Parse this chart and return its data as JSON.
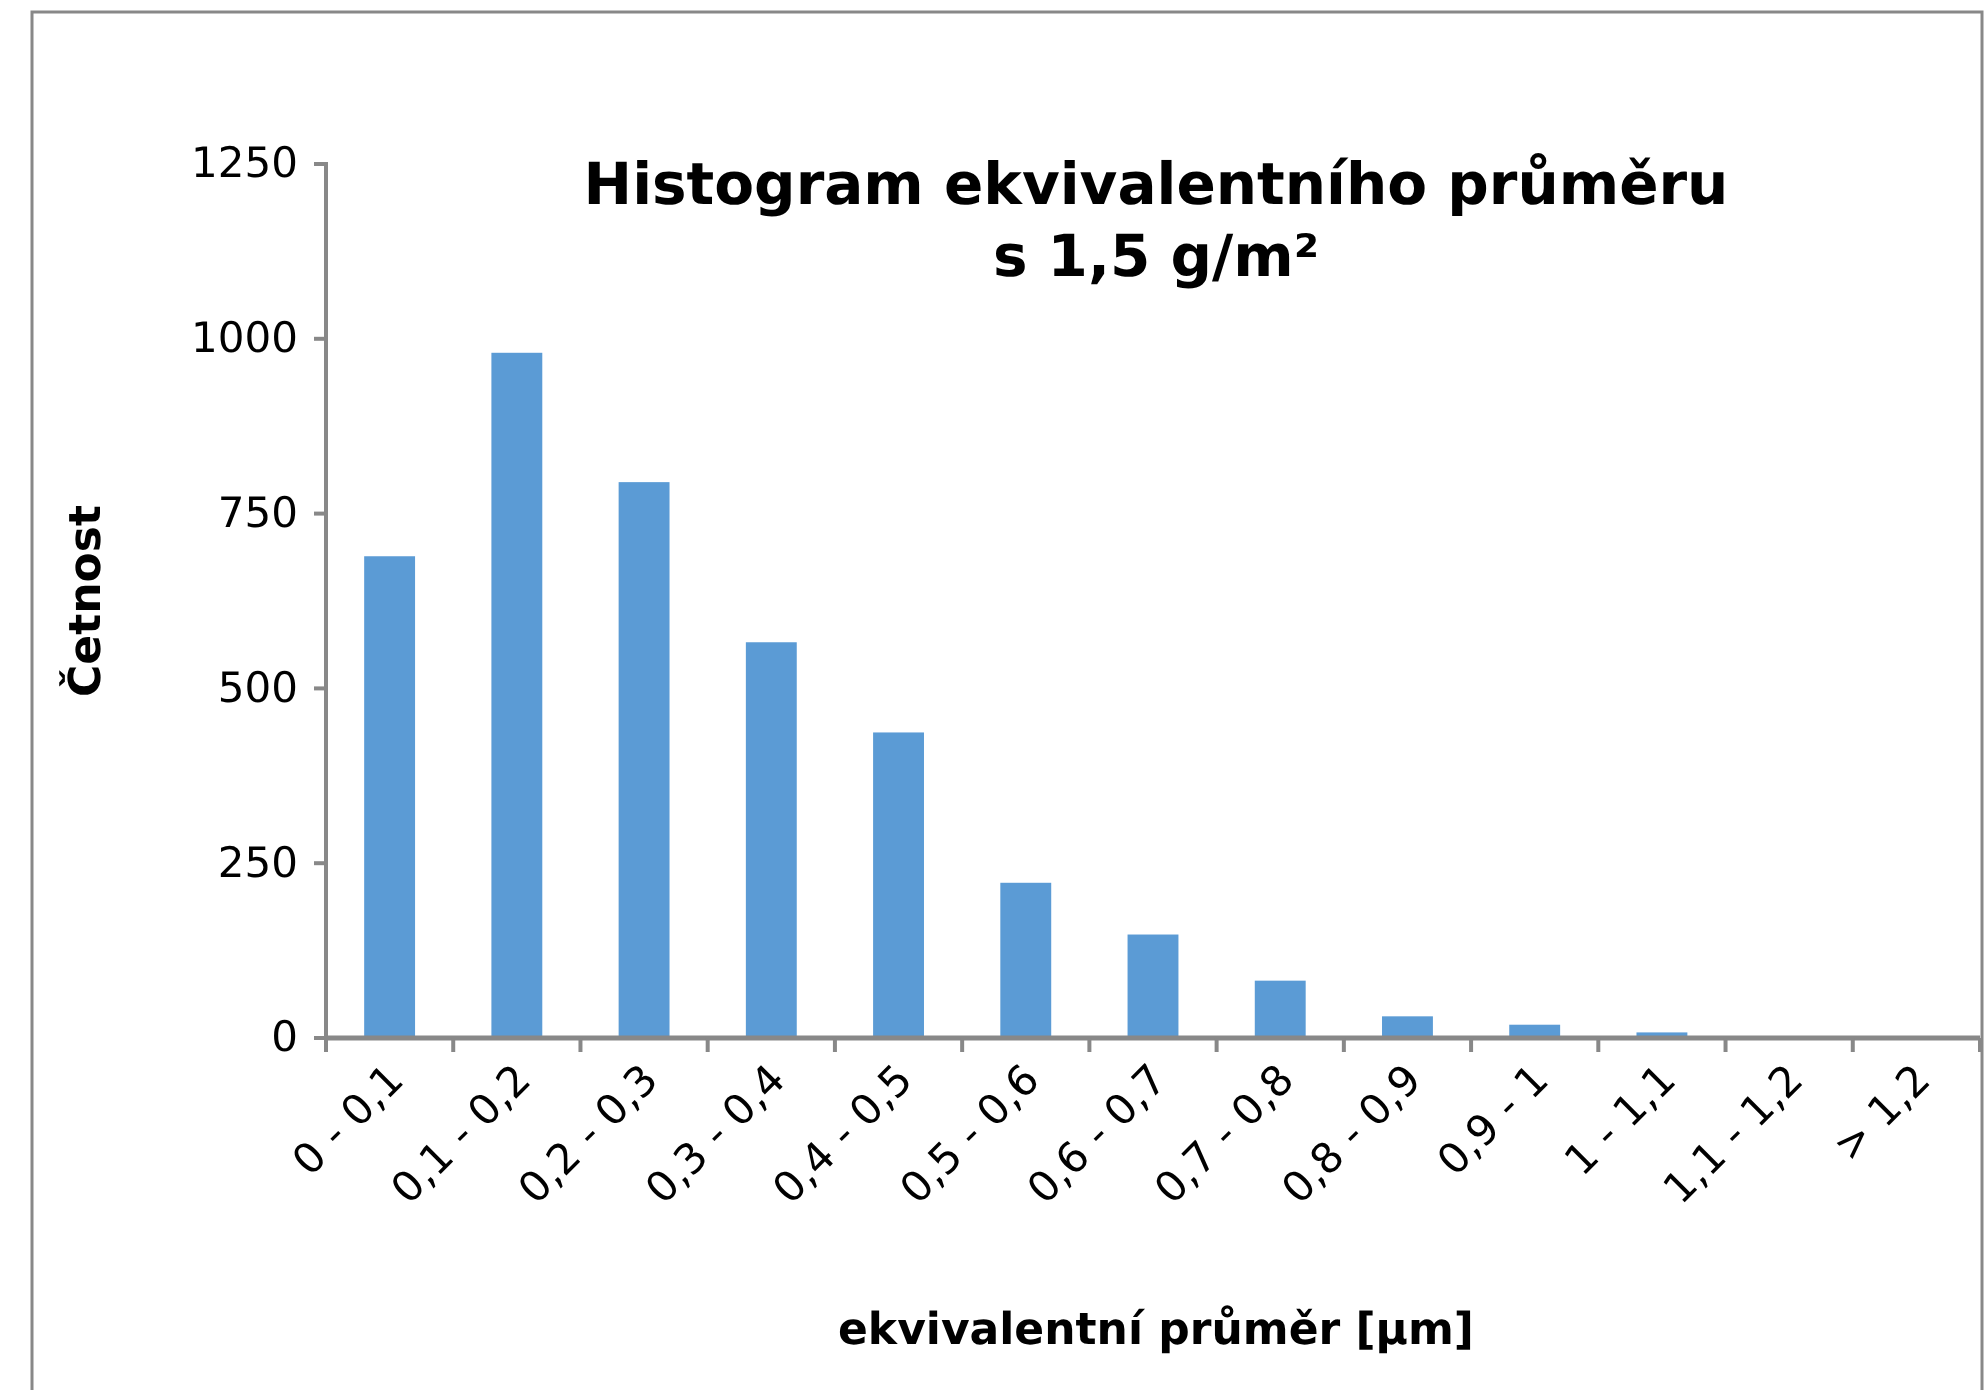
{
  "chart_data": {
    "type": "bar",
    "title": "Histogram ekvivalentního průměru\ns 1,5 g/m²",
    "xlabel": "ekvivalentní průměr [μm]",
    "ylabel": "Četnost",
    "categories": [
      "0 - 0,1",
      "0,1 - 0,2",
      "0,2 - 0,3",
      "0,3 - 0,4",
      "0,4 - 0,5",
      "0,5 - 0,6",
      "0,6 - 0,7",
      "0,7 - 0,8",
      "0,8 - 0,9",
      "0,9 - 1",
      "1 - 1,1",
      "1,1 - 1,2",
      "> 1,2"
    ],
    "values": [
      689,
      980,
      795,
      566,
      437,
      222,
      148,
      82,
      31,
      19,
      8,
      0,
      0
    ],
    "color": "#5b9bd5",
    "ylim": [
      0,
      1250
    ],
    "yticks": [
      0,
      250,
      500,
      750,
      1000,
      1250
    ]
  }
}
